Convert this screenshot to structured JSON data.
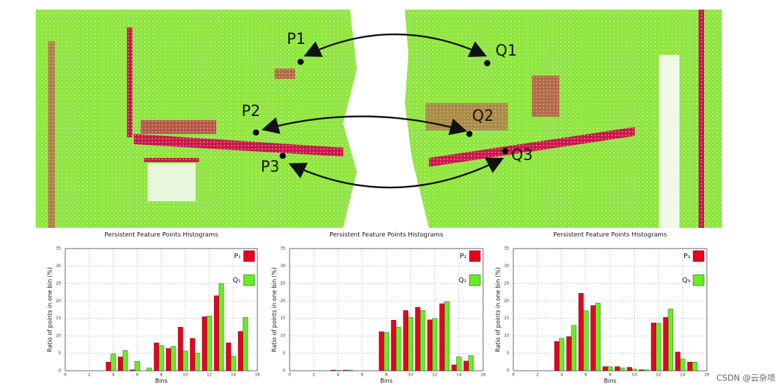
{
  "figure": {
    "points": [
      {
        "label": "P1"
      },
      {
        "label": "Q1"
      },
      {
        "label": "P2"
      },
      {
        "label": "Q2"
      },
      {
        "label": "P3"
      },
      {
        "label": "Q3"
      }
    ],
    "watermark": "CSDN @云杂项"
  },
  "chart_data": [
    {
      "type": "bar",
      "title": "Persistent Feature Points Histograms",
      "x_label": "Bins",
      "y_label": "Ratio of points in one bin (%)",
      "x": [
        0,
        1,
        2,
        3,
        4,
        5,
        6,
        7,
        8,
        9,
        10,
        11,
        12,
        13,
        14,
        15
      ],
      "series": [
        {
          "name": "P₁",
          "color": "#e8001c",
          "values": [
            0,
            0,
            0,
            0,
            2.5,
            4,
            0.3,
            0,
            8,
            6.4,
            12.5,
            9.3,
            15.5,
            21.5,
            8,
            11.3
          ]
        },
        {
          "name": "Q₁",
          "color": "#66ee22",
          "values": [
            0,
            0,
            0,
            0,
            4.8,
            5.8,
            2.7,
            0.8,
            7.2,
            7,
            5.7,
            5.1,
            15.7,
            25,
            4.2,
            15.3
          ]
        }
      ],
      "xlim": [
        0,
        16
      ],
      "xticks": [
        0,
        2,
        4,
        6,
        8,
        10,
        12,
        14,
        16
      ],
      "ylim": [
        0,
        35
      ],
      "yticks": [
        0,
        5,
        10,
        15,
        20,
        25,
        30,
        35
      ],
      "grid": true,
      "legend": "upper right"
    },
    {
      "type": "bar",
      "title": "Persistent Feature Points Histograms",
      "x_label": "Bins",
      "y_label": "Ratio of points in one bin (%)",
      "x": [
        0,
        1,
        2,
        3,
        4,
        5,
        6,
        7,
        8,
        9,
        10,
        11,
        12,
        13,
        14,
        15
      ],
      "series": [
        {
          "name": "P₂",
          "color": "#e8001c",
          "values": [
            0,
            0,
            0,
            0,
            0.2,
            0.2,
            0,
            0,
            11.2,
            14.5,
            17.3,
            18.2,
            14.6,
            19.2,
            1.7,
            2.8
          ]
        },
        {
          "name": "Q₂",
          "color": "#66ee22",
          "values": [
            0,
            0,
            0,
            0,
            0.1,
            0.2,
            0,
            0,
            11,
            12.5,
            15.3,
            17.3,
            15,
            19.8,
            4,
            4.4
          ]
        }
      ],
      "xlim": [
        0,
        16
      ],
      "xticks": [
        0,
        2,
        4,
        6,
        8,
        10,
        12,
        14,
        16
      ],
      "ylim": [
        0,
        35
      ],
      "yticks": [
        0,
        5,
        10,
        15,
        20,
        25,
        30,
        35
      ],
      "grid": true,
      "legend": "upper right"
    },
    {
      "type": "bar",
      "title": "Persistent Feature Points Histograms",
      "x_label": "Bins",
      "y_label": "Ratio of points in one bin (%)",
      "x": [
        0,
        1,
        2,
        3,
        4,
        5,
        6,
        7,
        8,
        9,
        10,
        11,
        12,
        13,
        14,
        15
      ],
      "series": [
        {
          "name": "P₃",
          "color": "#e8001c",
          "values": [
            0,
            0,
            0,
            0,
            8.4,
            9.8,
            22.2,
            18.7,
            1.2,
            1.2,
            1,
            0.3,
            13.7,
            15.3,
            5.4,
            2.5
          ]
        },
        {
          "name": "Q₃",
          "color": "#66ee22",
          "values": [
            0,
            0,
            0,
            0,
            9.3,
            13,
            17.2,
            19.4,
            1.2,
            0.8,
            0.5,
            0.3,
            13.6,
            17.7,
            3.4,
            2.5
          ]
        }
      ],
      "xlim": [
        0,
        16
      ],
      "xticks": [
        0,
        2,
        4,
        6,
        8,
        10,
        12,
        14,
        16
      ],
      "ylim": [
        0,
        35
      ],
      "yticks": [
        0,
        5,
        10,
        15,
        20,
        25,
        30,
        35
      ],
      "grid": true,
      "legend": "upper right"
    }
  ]
}
